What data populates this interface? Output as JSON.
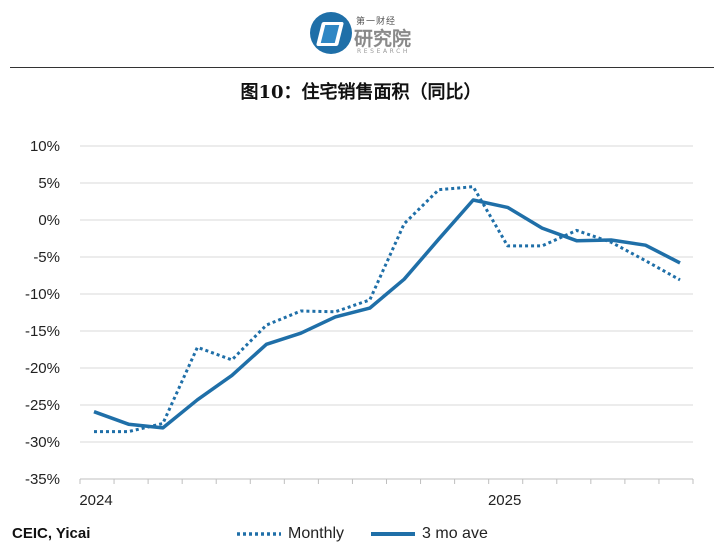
{
  "header": {
    "logo_small": "第一财经",
    "logo_main": "研究院",
    "logo_sub": "RESEARCH"
  },
  "title": "图10：住宅销售面积（同比）",
  "source": "CEIC, Yicai",
  "colors": {
    "series": "#1f6fa8",
    "grid": "#d9d9d9",
    "axis": "#bfbfbf"
  },
  "chart_data": {
    "type": "line",
    "title": "图10：住宅销售面积（同比）",
    "xlabel": "",
    "ylabel": "",
    "x_tick_labels": [
      {
        "label": "2024",
        "index": 0
      },
      {
        "label": "2025",
        "index": 12
      }
    ],
    "y_ticks": [
      10,
      5,
      0,
      -5,
      -10,
      -15,
      -20,
      -25,
      -30,
      -35
    ],
    "y_tick_labels": [
      "10%",
      "5%",
      "0%",
      "-5%",
      "-10%",
      "-15%",
      "-20%",
      "-25%",
      "-30%",
      "-35%"
    ],
    "ylim": [
      -35,
      10
    ],
    "grid": true,
    "legend_position": "bottom",
    "series": [
      {
        "name": "Monthly",
        "style": "dotted",
        "values": [
          -28.6,
          -28.6,
          -27.5,
          -17.2,
          -18.9,
          -14.2,
          -12.3,
          -12.4,
          -10.8,
          -0.5,
          4.1,
          4.5,
          -3.5,
          -3.5,
          -1.4,
          -3.0,
          -5.5,
          -8.1
        ]
      },
      {
        "name": "3 mo ave",
        "style": "solid",
        "values": [
          -25.9,
          -27.6,
          -28.1,
          -24.3,
          -21.0,
          -16.8,
          -15.3,
          -13.1,
          -11.9,
          -8.0,
          -2.6,
          2.7,
          1.7,
          -1.1,
          -2.8,
          -2.7,
          -3.4,
          -5.8
        ]
      }
    ]
  }
}
